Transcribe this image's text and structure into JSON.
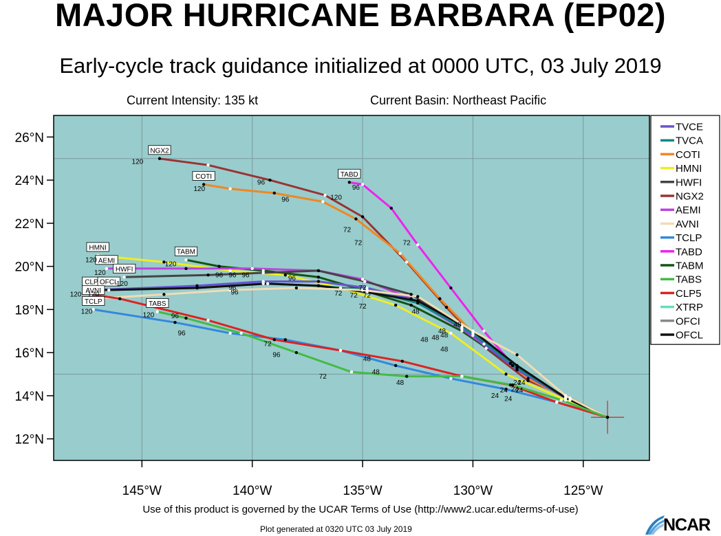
{
  "title": "MAJOR HURRICANE BARBARA (EP02)",
  "subtitle": "Early-cycle track guidance initialized at 0000 UTC, 03 July 2019",
  "intensity": "Current Intensity: 135 kt",
  "basin": "Current Basin: Northeast Pacific",
  "terms": "Use of this product is governed by the UCAR Terms of Use (http://www2.ucar.edu/terms-of-use)",
  "generated": "Plot generated at 0320 UTC   03 July 2019",
  "logo_text": "NCAR",
  "colors": {
    "ocean": "#99cccc",
    "frame": "#000000",
    "grid": "#7a9a9a",
    "start": "#dd2222"
  },
  "map": {
    "lon_range": [
      -149,
      -122
    ],
    "lat_range": [
      11,
      27
    ],
    "lon_ticks": [
      {
        "v": -145,
        "label": "145°W"
      },
      {
        "v": -140,
        "label": "140°W"
      },
      {
        "v": -135,
        "label": "135°W"
      },
      {
        "v": -130,
        "label": "130°W"
      },
      {
        "v": -125,
        "label": "125°W"
      }
    ],
    "lat_ticks": [
      {
        "v": 12,
        "label": "12°N"
      },
      {
        "v": 14,
        "label": "14°N"
      },
      {
        "v": 16,
        "label": "16°N"
      },
      {
        "v": 18,
        "label": "18°N"
      },
      {
        "v": 20,
        "label": "20°N"
      },
      {
        "v": 22,
        "label": "22°N"
      },
      {
        "v": 24,
        "label": "24°N"
      },
      {
        "v": 26,
        "label": "26°N"
      }
    ],
    "grid_lons": [
      -145,
      -140,
      -135,
      -130,
      -125
    ],
    "grid_lats": [
      15,
      25
    ],
    "storm_position": [
      -123.9,
      13.0
    ]
  },
  "legend": [
    {
      "name": "TVCE",
      "color": "#6655cc"
    },
    {
      "name": "TVCA",
      "color": "#118888"
    },
    {
      "name": "COTI",
      "color": "#ee8822"
    },
    {
      "name": "HMNI",
      "color": "#eeee22"
    },
    {
      "name": "HWFI",
      "color": "#444444"
    },
    {
      "name": "NGX2",
      "color": "#993333"
    },
    {
      "name": "AEMI",
      "color": "#bb44dd"
    },
    {
      "name": "AVNI",
      "color": "#f0dcb4"
    },
    {
      "name": "TCLP",
      "color": "#3388dd"
    },
    {
      "name": "TABD",
      "color": "#ee22ee"
    },
    {
      "name": "TABM",
      "color": "#115511"
    },
    {
      "name": "TABS",
      "color": "#44bb44"
    },
    {
      "name": "CLP5",
      "color": "#dd2222"
    },
    {
      "name": "XTRP",
      "color": "#66ddbb"
    },
    {
      "name": "OFCI",
      "color": "#888888"
    },
    {
      "name": "OFCL",
      "color": "#111111"
    }
  ],
  "tracks": [
    {
      "model": "NGX2",
      "color": "#993333",
      "label": "NGX2",
      "points": [
        [
          -123.9,
          13.0
        ],
        [
          -125.6,
          13.9
        ],
        [
          -127.5,
          14.7
        ],
        [
          -129.4,
          16.2
        ],
        [
          -131.2,
          18.1
        ],
        [
          -133.0,
          20.2
        ],
        [
          -135.0,
          22.3
        ],
        [
          -136.7,
          23.3
        ],
        [
          -139.2,
          24.0
        ],
        [
          -142.0,
          24.7
        ],
        [
          -144.2,
          25.0
        ]
      ]
    },
    {
      "model": "COTI",
      "color": "#ee8822",
      "label": "COTI",
      "points": [
        [
          -123.9,
          13.0
        ],
        [
          -125.6,
          13.8
        ],
        [
          -127.5,
          14.8
        ],
        [
          -129.5,
          16.4
        ],
        [
          -131.5,
          18.5
        ],
        [
          -133.3,
          20.6
        ],
        [
          -135.3,
          22.2
        ],
        [
          -136.8,
          23.0
        ],
        [
          -139.0,
          23.4
        ],
        [
          -141.0,
          23.6
        ],
        [
          -142.2,
          23.8
        ]
      ]
    },
    {
      "model": "TABD",
      "color": "#ee22ee",
      "label": "TABD",
      "points": [
        [
          -123.9,
          13.0
        ],
        [
          -125.8,
          13.9
        ],
        [
          -128.0,
          15.2
        ],
        [
          -129.5,
          17.0
        ],
        [
          -131.0,
          19.0
        ],
        [
          -132.5,
          21.0
        ],
        [
          -133.7,
          22.7
        ],
        [
          -135.0,
          23.8
        ],
        [
          -135.6,
          23.9
        ]
      ]
    },
    {
      "model": "TABM",
      "color": "#115511",
      "label": "TABM",
      "points": [
        [
          -123.9,
          13.0
        ],
        [
          -125.8,
          13.9
        ],
        [
          -128.2,
          15.4
        ],
        [
          -130.5,
          17.0
        ],
        [
          -132.8,
          18.2
        ],
        [
          -135.0,
          18.9
        ],
        [
          -137.0,
          19.5
        ],
        [
          -139.5,
          19.8
        ],
        [
          -141.5,
          20.0
        ],
        [
          -143.0,
          20.3
        ]
      ]
    },
    {
      "model": "HMNI",
      "color": "#eeee22",
      "label": "HMNI",
      "points": [
        [
          -123.9,
          13.0
        ],
        [
          -125.8,
          13.8
        ],
        [
          -128.5,
          15.0
        ],
        [
          -131.0,
          16.9
        ],
        [
          -133.5,
          18.2
        ],
        [
          -136.0,
          19.0
        ],
        [
          -138.5,
          19.6
        ],
        [
          -141.0,
          19.8
        ],
        [
          -144.0,
          20.2
        ],
        [
          -147.0,
          20.5
        ]
      ]
    },
    {
      "model": "AEMI",
      "color": "#bb44dd",
      "label": "AEMI",
      "points": [
        [
          -123.9,
          13.0
        ],
        [
          -125.8,
          13.9
        ],
        [
          -128.2,
          15.4
        ],
        [
          -130.5,
          17.1
        ],
        [
          -132.8,
          18.5
        ],
        [
          -135.0,
          19.4
        ],
        [
          -137.0,
          19.8
        ],
        [
          -140.0,
          19.9
        ],
        [
          -143.0,
          19.9
        ],
        [
          -146.6,
          19.9
        ]
      ]
    },
    {
      "model": "HWFI",
      "color": "#444444",
      "label": "HWFI",
      "points": [
        [
          -123.9,
          13.0
        ],
        [
          -125.8,
          13.9
        ],
        [
          -128.3,
          15.5
        ],
        [
          -130.5,
          17.2
        ],
        [
          -132.8,
          18.7
        ],
        [
          -134.9,
          19.3
        ],
        [
          -137.0,
          19.8
        ],
        [
          -139.5,
          19.7
        ],
        [
          -142.0,
          19.6
        ],
        [
          -145.8,
          19.5
        ]
      ]
    },
    {
      "model": "TVCE",
      "color": "#6655cc",
      "label": "CLP5",
      "points": [
        [
          -123.9,
          13.0
        ],
        [
          -125.8,
          13.9
        ],
        [
          -128.0,
          15.2
        ],
        [
          -130.0,
          16.8
        ],
        [
          -132.5,
          18.4
        ],
        [
          -134.8,
          19.0
        ],
        [
          -137.0,
          19.3
        ],
        [
          -139.5,
          19.3
        ],
        [
          -142.5,
          19.1
        ],
        [
          -147.2,
          18.9
        ]
      ]
    },
    {
      "model": "TVCA",
      "color": "#118888",
      "label": "OFCL",
      "points": [
        [
          -123.9,
          13.0
        ],
        [
          -125.8,
          13.9
        ],
        [
          -128.0,
          15.3
        ],
        [
          -130.0,
          16.9
        ],
        [
          -132.5,
          18.3
        ],
        [
          -134.8,
          18.9
        ],
        [
          -137.0,
          19.1
        ],
        [
          -139.5,
          19.2
        ],
        [
          -142.5,
          19.0
        ],
        [
          -146.5,
          18.9
        ]
      ]
    },
    {
      "model": "OFCL",
      "color": "#111111",
      "label": "",
      "points": [
        [
          -123.9,
          13.0
        ],
        [
          -125.8,
          13.9
        ],
        [
          -128.0,
          15.4
        ],
        [
          -130.0,
          17.0
        ],
        [
          -132.5,
          18.4
        ],
        [
          -134.8,
          18.8
        ],
        [
          -137.0,
          19.1
        ],
        [
          -139.3,
          19.2
        ],
        [
          -142.5,
          19.0
        ],
        [
          -146.8,
          18.9
        ]
      ]
    },
    {
      "model": "AVNI",
      "color": "#f0dcb4",
      "label": "AVNI",
      "points": [
        [
          -123.9,
          13.0
        ],
        [
          -125.8,
          14.0
        ],
        [
          -128.0,
          15.9
        ],
        [
          -130.0,
          17.0
        ],
        [
          -132.5,
          18.6
        ],
        [
          -135.0,
          18.9
        ],
        [
          -138.0,
          19.0
        ],
        [
          -141.0,
          18.9
        ],
        [
          -144.0,
          18.7
        ],
        [
          -147.2,
          18.5
        ]
      ]
    },
    {
      "model": "TCLP",
      "color": "#3388dd",
      "label": "TCLP",
      "points": [
        [
          -123.9,
          13.0
        ],
        [
          -126.2,
          13.7
        ],
        [
          -128.5,
          14.3
        ],
        [
          -131.0,
          14.8
        ],
        [
          -133.5,
          15.4
        ],
        [
          -136.0,
          16.1
        ],
        [
          -138.5,
          16.6
        ],
        [
          -141.0,
          16.9
        ],
        [
          -143.5,
          17.4
        ],
        [
          -147.2,
          18.0
        ]
      ]
    },
    {
      "model": "CLP5",
      "color": "#dd2222",
      "label": "",
      "points": [
        [
          -123.9,
          13.0
        ],
        [
          -126.2,
          13.7
        ],
        [
          -128.3,
          14.5
        ],
        [
          -130.5,
          14.9
        ],
        [
          -133.2,
          15.6
        ],
        [
          -136.0,
          16.1
        ],
        [
          -139.0,
          16.6
        ],
        [
          -142.0,
          17.5
        ],
        [
          -146.0,
          18.5
        ],
        [
          -147.3,
          18.7
        ]
      ]
    },
    {
      "model": "TABS",
      "color": "#44bb44",
      "label": "TABS",
      "points": [
        [
          -123.9,
          13.0
        ],
        [
          -126.0,
          13.8
        ],
        [
          -128.2,
          14.5
        ],
        [
          -130.5,
          14.9
        ],
        [
          -133.0,
          14.9
        ],
        [
          -135.5,
          15.1
        ],
        [
          -138.0,
          16.0
        ],
        [
          -140.5,
          16.9
        ],
        [
          -143.0,
          17.6
        ],
        [
          -144.3,
          17.9
        ]
      ]
    }
  ],
  "hour_labels": [
    {
      "text": "120",
      "at": [
        -145.2,
        24.75
      ]
    },
    {
      "text": "96",
      "at": [
        -139.6,
        23.8
      ]
    },
    {
      "text": "120",
      "at": [
        -142.4,
        23.5
      ]
    },
    {
      "text": "96",
      "at": [
        -138.5,
        23.0
      ]
    },
    {
      "text": "120",
      "at": [
        -136.2,
        23.1
      ]
    },
    {
      "text": "96",
      "at": [
        -135.3,
        23.55
      ]
    },
    {
      "text": "72",
      "at": [
        -135.7,
        21.6
      ]
    },
    {
      "text": "72",
      "at": [
        -135.2,
        21.0
      ]
    },
    {
      "text": "72",
      "at": [
        -133.0,
        21.0
      ]
    },
    {
      "text": "120",
      "at": [
        -143.7,
        20.0
      ]
    },
    {
      "text": "120",
      "at": [
        -147.3,
        20.2
      ]
    },
    {
      "text": "120",
      "at": [
        -146.9,
        19.6
      ]
    },
    {
      "text": "120",
      "at": [
        -145.9,
        19.1
      ]
    },
    {
      "text": "96",
      "at": [
        -141.5,
        19.5
      ]
    },
    {
      "text": "96",
      "at": [
        -140.9,
        19.5
      ]
    },
    {
      "text": "96",
      "at": [
        -140.3,
        19.5
      ]
    },
    {
      "text": "96",
      "at": [
        -138.2,
        19.35
      ]
    },
    {
      "text": "96",
      "at": [
        -140.9,
        18.9
      ]
    },
    {
      "text": "96",
      "at": [
        -140.8,
        18.7
      ]
    },
    {
      "text": "120",
      "at": [
        -148.0,
        18.6
      ]
    },
    {
      "text": "120",
      "at": [
        -147.2,
        18.6
      ]
    },
    {
      "text": "120",
      "at": [
        -147.5,
        17.8
      ]
    },
    {
      "text": "72",
      "at": [
        -136.1,
        18.65
      ]
    },
    {
      "text": "72",
      "at": [
        -135.4,
        18.55
      ]
    },
    {
      "text": "72",
      "at": [
        -134.8,
        18.55
      ]
    },
    {
      "text": "72",
      "at": [
        -135.0,
        18.9
      ]
    },
    {
      "text": "72",
      "at": [
        -135.0,
        18.05
      ]
    },
    {
      "text": "48",
      "at": [
        -132.6,
        17.8
      ]
    },
    {
      "text": "48",
      "at": [
        -131.4,
        16.9
      ]
    },
    {
      "text": "48",
      "at": [
        -130.7,
        17.2
      ]
    },
    {
      "text": "48",
      "at": [
        -132.2,
        16.5
      ]
    },
    {
      "text": "48",
      "at": [
        -131.7,
        16.6
      ]
    },
    {
      "text": "48",
      "at": [
        -131.3,
        16.7
      ]
    },
    {
      "text": "48",
      "at": [
        -131.3,
        16.05
      ]
    },
    {
      "text": "120",
      "at": [
        -144.7,
        17.65
      ]
    },
    {
      "text": "96",
      "at": [
        -143.5,
        17.6
      ]
    },
    {
      "text": "96",
      "at": [
        -143.2,
        16.8
      ]
    },
    {
      "text": "72",
      "at": [
        -139.3,
        16.3
      ]
    },
    {
      "text": "96",
      "at": [
        -138.9,
        15.8
      ]
    },
    {
      "text": "72",
      "at": [
        -136.8,
        14.8
      ]
    },
    {
      "text": "48",
      "at": [
        -134.8,
        15.6
      ]
    },
    {
      "text": "48",
      "at": [
        -134.4,
        15.0
      ]
    },
    {
      "text": "48",
      "at": [
        -133.3,
        14.5
      ]
    },
    {
      "text": "24",
      "at": [
        -129.0,
        13.9
      ]
    },
    {
      "text": "24",
      "at": [
        -128.6,
        14.15
      ]
    },
    {
      "text": "24",
      "at": [
        -128.4,
        13.75
      ]
    },
    {
      "text": "24",
      "at": [
        -128.1,
        14.2
      ]
    },
    {
      "text": "24",
      "at": [
        -128.0,
        14.5
      ]
    },
    {
      "text": "24",
      "at": [
        -127.9,
        14.15
      ]
    },
    {
      "text": "24",
      "at": [
        -127.8,
        14.5
      ]
    }
  ]
}
